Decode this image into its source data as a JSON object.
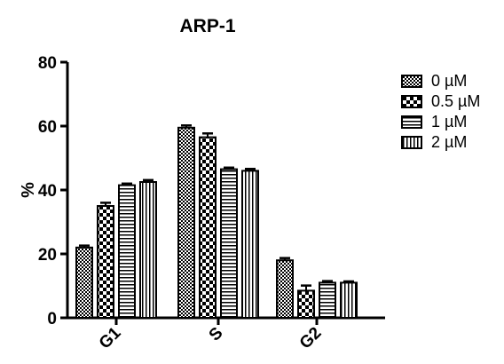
{
  "chart_data": {
    "type": "bar",
    "title": "ARP-1",
    "ylabel": "%",
    "xlabel": "",
    "ylim": [
      0,
      80
    ],
    "yticks": [
      0,
      20,
      40,
      60,
      80
    ],
    "categories": [
      "G1",
      "S",
      "G2"
    ],
    "series": [
      {
        "name": "0 µM",
        "values": [
          22,
          59.5,
          18
        ],
        "errors": [
          0.6,
          0.7,
          0.7
        ],
        "pattern": "fine-check"
      },
      {
        "name": "0.5 µM",
        "values": [
          35,
          56.5,
          8.5
        ],
        "errors": [
          1.0,
          1.2,
          1.6
        ],
        "pattern": "coarse-check"
      },
      {
        "name": "1 µM",
        "values": [
          41.5,
          46.5,
          11
        ],
        "errors": [
          0.5,
          0.5,
          0.5
        ],
        "pattern": "horizontal"
      },
      {
        "name": "2 µM",
        "values": [
          42.5,
          46,
          11
        ],
        "errors": [
          0.6,
          0.6,
          0.4
        ],
        "pattern": "vertical"
      }
    ],
    "legend_position": "right",
    "grid": false
  }
}
